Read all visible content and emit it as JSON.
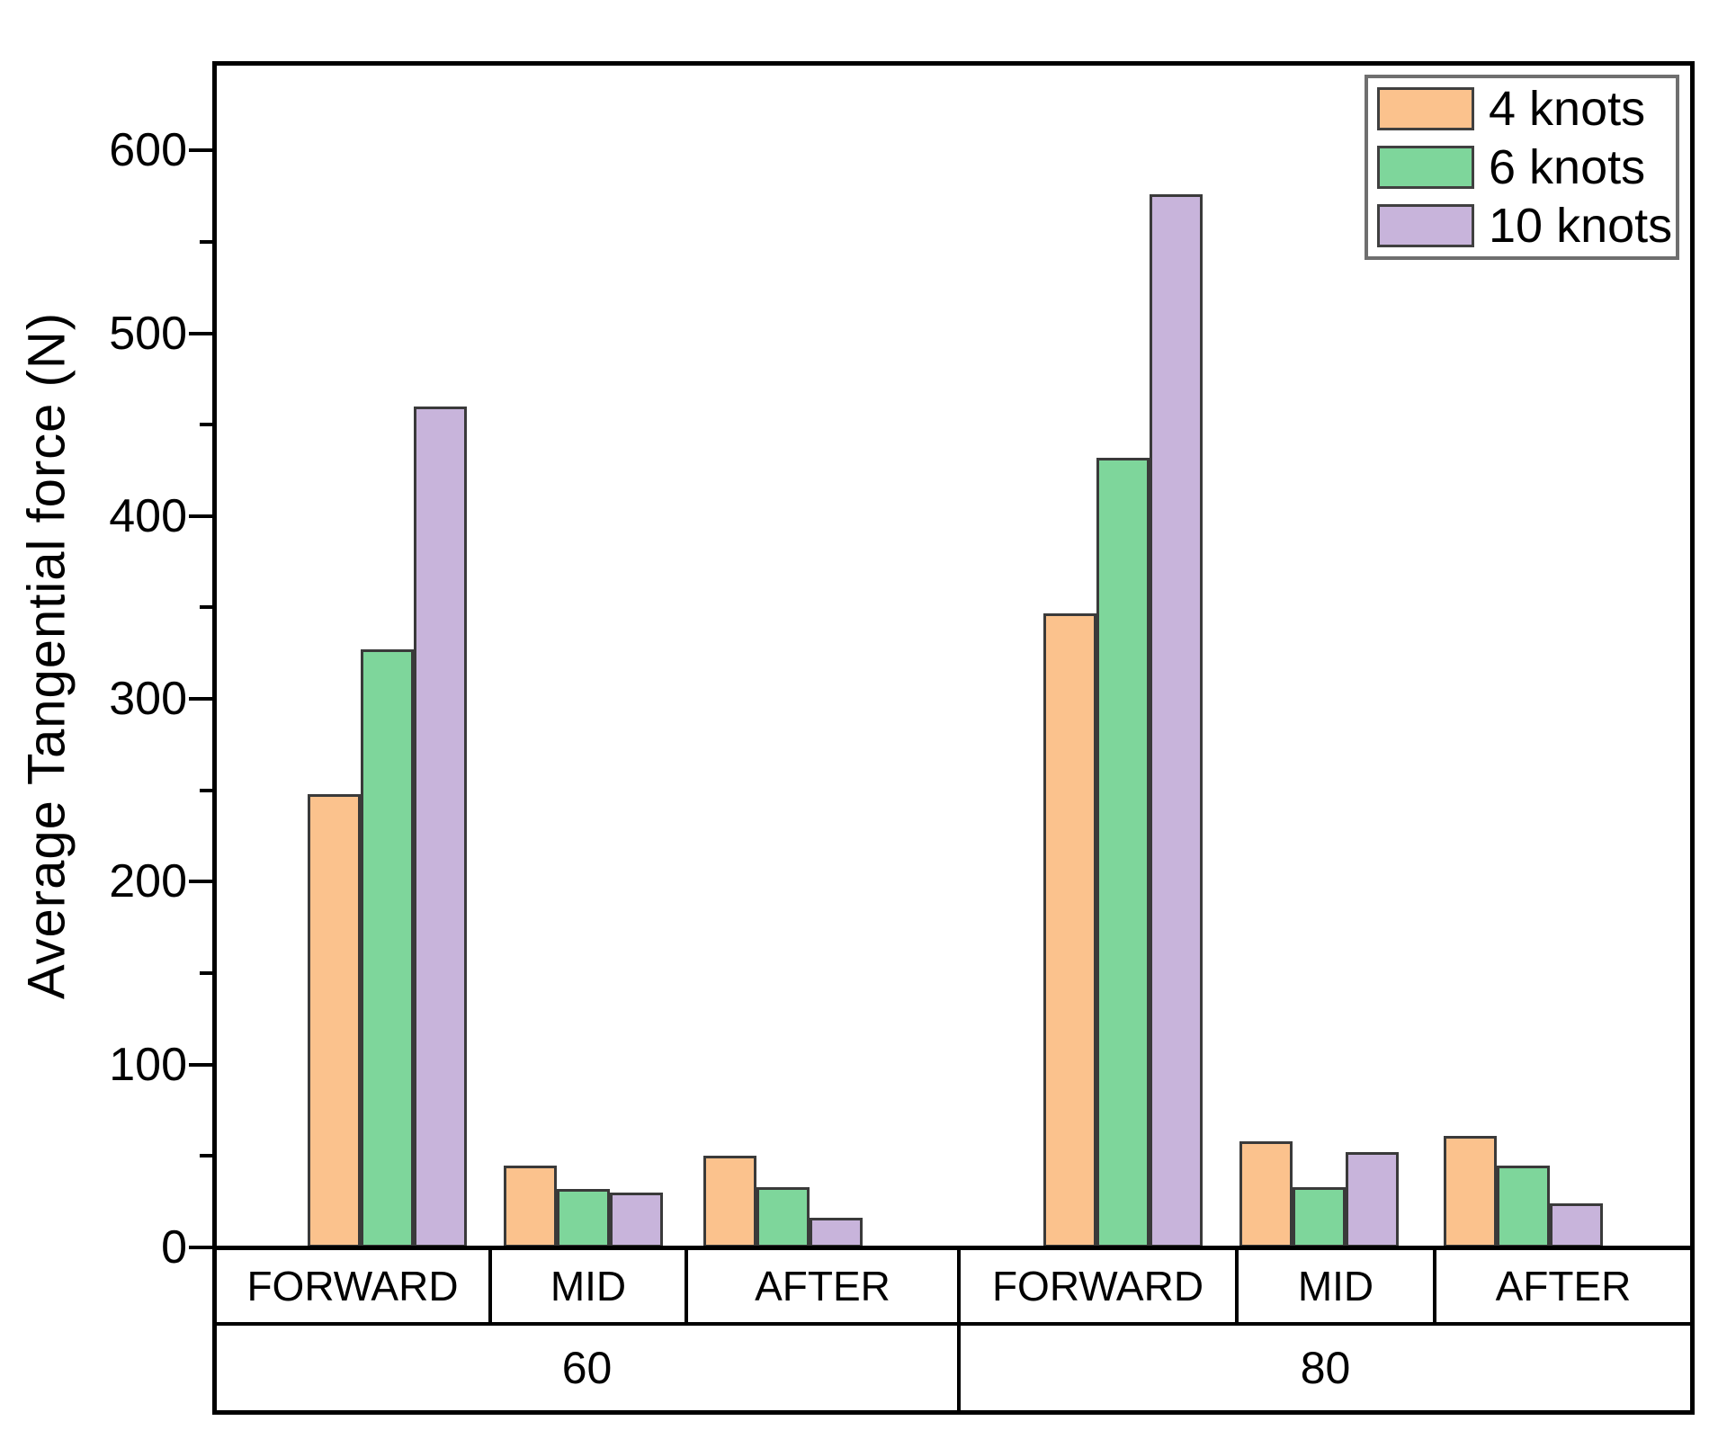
{
  "chart_data": {
    "type": "bar",
    "title": "",
    "ylabel": "Average Tangential force (N)",
    "xlabel": "",
    "ylim": [
      0,
      650
    ],
    "yticks": [
      0,
      100,
      200,
      300,
      400,
      500,
      600
    ],
    "ytick_step": 100,
    "yminor_step": 50,
    "grid": false,
    "legend_position": "top-right",
    "groups": [
      "60",
      "80"
    ],
    "categories": [
      "FORWARD",
      "MID",
      "AFTER"
    ],
    "series": [
      {
        "name": "4 knots",
        "color": "#FBC28D",
        "values": [
          248,
          45,
          50,
          347,
          58,
          61
        ]
      },
      {
        "name": "6 knots",
        "color": "#7ED69B",
        "values": [
          327,
          32,
          33,
          432,
          33,
          45
        ]
      },
      {
        "name": "10 knots",
        "color": "#C8B4DB",
        "values": [
          460,
          30,
          16,
          576,
          52,
          24
        ]
      }
    ],
    "bar_border_color": "#3A3A3A",
    "axis_color": "#000000"
  }
}
